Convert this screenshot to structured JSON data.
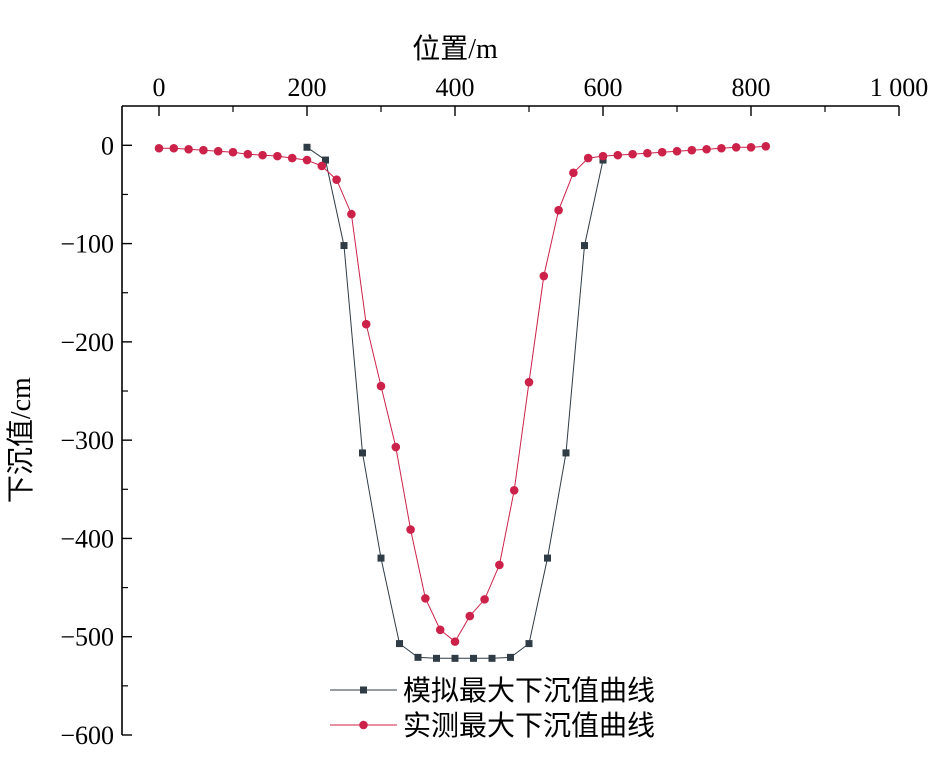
{
  "chart_data": {
    "type": "line",
    "xlabel": "位置/m",
    "ylabel": "下沉值/cm",
    "xlim": [
      -50,
      1000
    ],
    "ylim": [
      -600,
      40
    ],
    "x_ticks": [
      0,
      200,
      400,
      600,
      800,
      1000
    ],
    "x_tick_labels": [
      "0",
      "200",
      "400",
      "600",
      "800",
      "1 000"
    ],
    "y_ticks": [
      0,
      -100,
      -200,
      -300,
      -400,
      -500,
      -600
    ],
    "y_tick_labels": [
      "0",
      "−100",
      "−200",
      "−300",
      "−400",
      "−500",
      "−600"
    ],
    "x_axis_position": "top",
    "grid": false,
    "legend_position": "bottom-center",
    "series": [
      {
        "name": "模拟最大下沉值曲线",
        "color": "#2f3c46",
        "marker": "square",
        "x": [
          200,
          225,
          250,
          275,
          300,
          325,
          350,
          375,
          400,
          425,
          450,
          475,
          500,
          525,
          550,
          575,
          600
        ],
        "y": [
          -2,
          -15,
          -102,
          -313,
          -420,
          -507,
          -521,
          -522,
          -522,
          -522,
          -522,
          -521,
          -507,
          -420,
          -313,
          -102,
          -15
        ]
      },
      {
        "name": "实测最大下沉值曲线",
        "color": "#cc2249",
        "marker": "circle",
        "x": [
          0,
          20,
          40,
          60,
          80,
          100,
          120,
          140,
          160,
          180,
          200,
          220,
          240,
          260,
          280,
          300,
          320,
          340,
          360,
          380,
          400,
          420,
          440,
          460,
          480,
          500,
          520,
          540,
          560,
          580,
          600,
          620,
          640,
          660,
          680,
          700,
          720,
          740,
          760,
          780,
          800,
          820
        ],
        "y": [
          -3,
          -3,
          -4,
          -5,
          -6,
          -7,
          -9,
          -10,
          -11,
          -13,
          -15,
          -21,
          -35,
          -70,
          -182,
          -245,
          -307,
          -391,
          -461,
          -493,
          -505,
          -479,
          -462,
          -427,
          -351,
          -241,
          -133,
          -66,
          -28,
          -13,
          -11,
          -10,
          -9,
          -8,
          -7,
          -6,
          -5,
          -4,
          -3,
          -2,
          -2,
          -1
        ]
      }
    ]
  }
}
